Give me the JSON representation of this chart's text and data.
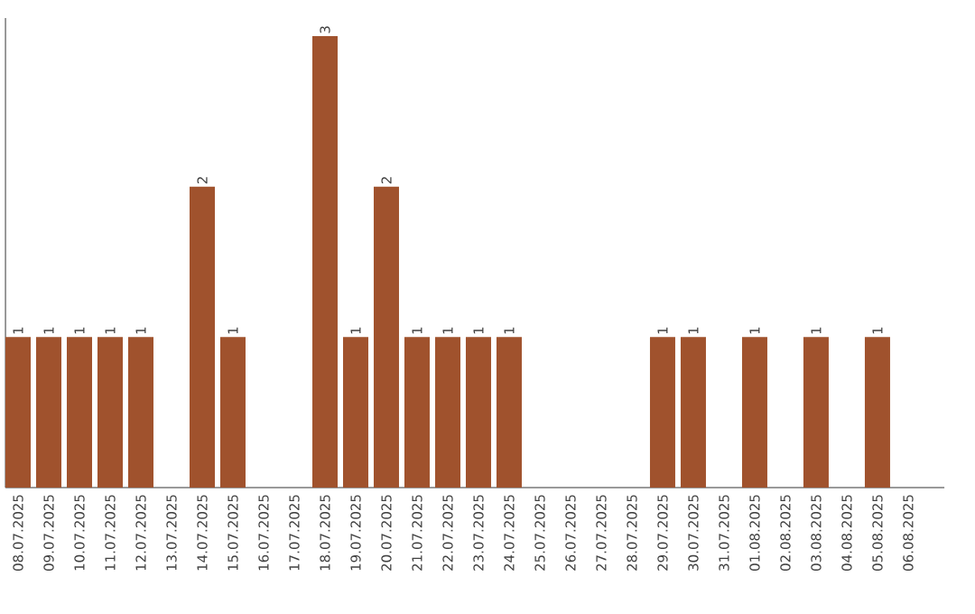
{
  "chart_data": {
    "type": "bar",
    "categories": [
      "08.07.2025",
      "09.07.2025",
      "10.07.2025",
      "11.07.2025",
      "12.07.2025",
      "13.07.2025",
      "14.07.2025",
      "15.07.2025",
      "16.07.2025",
      "17.07.2025",
      "18.07.2025",
      "19.07.2025",
      "20.07.2025",
      "21.07.2025",
      "22.07.2025",
      "23.07.2025",
      "24.07.2025",
      "25.07.2025",
      "26.07.2025",
      "27.07.2025",
      "28.07.2025",
      "29.07.2025",
      "30.07.2025",
      "31.07.2025",
      "01.08.2025",
      "02.08.2025",
      "03.08.2025",
      "04.08.2025",
      "05.08.2025",
      "06.08.2025"
    ],
    "values": [
      1,
      1,
      1,
      1,
      1,
      0,
      2,
      1,
      0,
      0,
      3,
      1,
      2,
      1,
      1,
      1,
      1,
      0,
      0,
      0,
      0,
      1,
      1,
      0,
      1,
      0,
      1,
      0,
      1,
      0
    ],
    "value_labels": [
      "1",
      "1",
      "1",
      "1",
      "1",
      null,
      "2",
      "1",
      null,
      null,
      "3",
      "1",
      "2",
      "1",
      "1",
      "1",
      "1",
      null,
      null,
      null,
      null,
      "1",
      "1",
      null,
      "1",
      null,
      "1",
      null,
      "1",
      null
    ],
    "color": "#a0522d",
    "ylim": [
      0,
      3.12
    ],
    "tick_labels": "x"
  }
}
